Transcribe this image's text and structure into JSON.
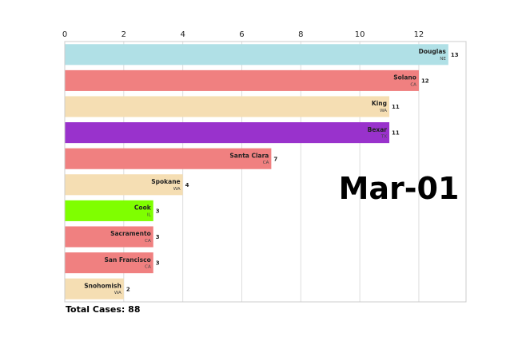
{
  "chart_data": {
    "type": "bar",
    "orientation": "horizontal",
    "categories": [
      "Douglas",
      "Solano",
      "King",
      "Bexar",
      "Santa Clara",
      "Spokane",
      "Cook",
      "Sacramento",
      "San Francisco",
      "Snohomish"
    ],
    "states": [
      "NE",
      "CA",
      "WA",
      "TX",
      "CA",
      "WA",
      "IL",
      "CA",
      "CA",
      "WA"
    ],
    "values": [
      13,
      12,
      11,
      11,
      7,
      4,
      3,
      3,
      3,
      2
    ],
    "colors": [
      "#b0e0e6",
      "#f08080",
      "#f5deb3",
      "#9932cc",
      "#f08080",
      "#f5deb3",
      "#7fff00",
      "#f08080",
      "#f08080",
      "#f5deb3"
    ],
    "xlim": [
      0,
      13.6
    ],
    "xticks": [
      0,
      2,
      4,
      6,
      8,
      10,
      12
    ],
    "x_axis_position": "top",
    "grid": "vertical",
    "date_label": "Mar-01",
    "total_label": "Total Cases: 88"
  }
}
